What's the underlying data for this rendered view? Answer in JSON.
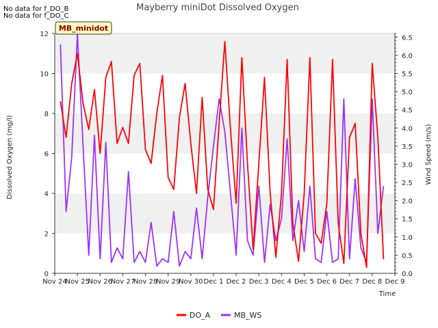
{
  "notes": [
    "No data for f_DO_B",
    "No data for f_DO_C"
  ],
  "chart_data": {
    "type": "line",
    "title": "Mayberry miniDot Dissolved Oxygen",
    "badge": "MB_minidot",
    "xlabel": "Time",
    "ylabel": "Dissolved Oxygen (mg/l)",
    "y2label": "Wind Speed (m/s)",
    "ylim": [
      0,
      12
    ],
    "y2lim": [
      0,
      6.6
    ],
    "xlim": [
      "2023-11-24",
      "2023-12-09"
    ],
    "x_ticks": [
      "Nov 24",
      "Nov 25",
      "Nov 26",
      "Nov 27",
      "Nov 28",
      "Nov 29",
      "Nov 30",
      "Dec 1",
      "Dec 2",
      "Dec 3",
      "Dec 4",
      "Dec 5",
      "Dec 6",
      "Dec 7",
      "Dec 8",
      "Dec 9"
    ],
    "y_ticks": [
      "0",
      "2",
      "4",
      "6",
      "8",
      "10",
      "12"
    ],
    "y2_ticks": [
      "0.0",
      "0.5",
      "1.0",
      "1.5",
      "2.0",
      "2.5",
      "3.0",
      "3.5",
      "4.0",
      "4.5",
      "5.0",
      "5.5",
      "6.0",
      "6.5"
    ],
    "grid": "horizontal bands",
    "legend_position": "bottom-center",
    "colors": {
      "DO_A": "#ff0000",
      "MB_WS": "#9b30ff",
      "band": "#f0f0f0"
    },
    "series": [
      {
        "name": "DO_A",
        "axis": "left",
        "x": [
          "2023-11-24 06:00",
          "2023-11-24 12:00",
          "2023-11-24 18:00",
          "2023-11-25 00:00",
          "2023-11-25 06:00",
          "2023-11-25 12:00",
          "2023-11-25 18:00",
          "2023-11-26 00:00",
          "2023-11-26 06:00",
          "2023-11-26 12:00",
          "2023-11-26 18:00",
          "2023-11-27 00:00",
          "2023-11-27 06:00",
          "2023-11-27 12:00",
          "2023-11-27 18:00",
          "2023-11-28 00:00",
          "2023-11-28 06:00",
          "2023-11-28 12:00",
          "2023-11-28 18:00",
          "2023-11-29 00:00",
          "2023-11-29 06:00",
          "2023-11-29 12:00",
          "2023-11-29 18:00",
          "2023-11-30 00:00",
          "2023-11-30 06:00",
          "2023-11-30 12:00",
          "2023-11-30 18:00",
          "2023-12-01 00:00",
          "2023-12-01 06:00",
          "2023-12-01 12:00",
          "2023-12-01 18:00",
          "2023-12-02 00:00",
          "2023-12-02 06:00",
          "2023-12-02 12:00",
          "2023-12-02 18:00",
          "2023-12-03 00:00",
          "2023-12-03 06:00",
          "2023-12-03 12:00",
          "2023-12-03 18:00",
          "2023-12-04 00:00",
          "2023-12-04 06:00",
          "2023-12-04 12:00",
          "2023-12-04 18:00",
          "2023-12-05 00:00",
          "2023-12-05 06:00",
          "2023-12-05 12:00",
          "2023-12-05 18:00",
          "2023-12-06 00:00",
          "2023-12-06 06:00",
          "2023-12-06 12:00",
          "2023-12-06 18:00",
          "2023-12-07 00:00",
          "2023-12-07 06:00",
          "2023-12-07 12:00",
          "2023-12-07 18:00",
          "2023-12-08 00:00",
          "2023-12-08 06:00",
          "2023-12-08 12:00"
        ],
        "values": [
          8.6,
          6.8,
          9.5,
          11.0,
          8.5,
          7.2,
          9.2,
          6.0,
          9.8,
          10.6,
          6.5,
          7.3,
          6.5,
          9.9,
          10.5,
          6.2,
          5.5,
          8.0,
          9.9,
          4.8,
          4.2,
          7.8,
          9.5,
          6.5,
          4.0,
          8.8,
          4.2,
          3.2,
          7.5,
          11.6,
          7.2,
          3.5,
          10.8,
          5.5,
          1.2,
          5.5,
          9.8,
          4.0,
          0.8,
          4.0,
          10.7,
          2.5,
          0.6,
          4.0,
          10.8,
          2.0,
          1.5,
          3.5,
          10.7,
          2.5,
          0.5,
          6.8,
          7.5,
          2.0,
          0.3,
          10.5,
          6.8,
          0.7
        ]
      },
      {
        "name": "MB_WS",
        "axis": "right",
        "x": [
          "2023-11-24 06:00",
          "2023-11-24 12:00",
          "2023-11-24 18:00",
          "2023-11-25 00:00",
          "2023-11-25 06:00",
          "2023-11-25 12:00",
          "2023-11-25 18:00",
          "2023-11-26 00:00",
          "2023-11-26 06:00",
          "2023-11-26 12:00",
          "2023-11-26 18:00",
          "2023-11-27 00:00",
          "2023-11-27 06:00",
          "2023-11-27 12:00",
          "2023-11-27 18:00",
          "2023-11-28 00:00",
          "2023-11-28 06:00",
          "2023-11-28 12:00",
          "2023-11-28 18:00",
          "2023-11-29 00:00",
          "2023-11-29 06:00",
          "2023-11-29 12:00",
          "2023-11-29 18:00",
          "2023-11-30 00:00",
          "2023-11-30 06:00",
          "2023-11-30 12:00",
          "2023-11-30 18:00",
          "2023-12-01 00:00",
          "2023-12-01 06:00",
          "2023-12-01 12:00",
          "2023-12-01 18:00",
          "2023-12-02 00:00",
          "2023-12-02 06:00",
          "2023-12-02 12:00",
          "2023-12-02 18:00",
          "2023-12-03 00:00",
          "2023-12-03 06:00",
          "2023-12-03 12:00",
          "2023-12-03 18:00",
          "2023-12-04 00:00",
          "2023-12-04 06:00",
          "2023-12-04 12:00",
          "2023-12-04 18:00",
          "2023-12-05 00:00",
          "2023-12-05 06:00",
          "2023-12-05 12:00",
          "2023-12-05 18:00",
          "2023-12-06 00:00",
          "2023-12-06 06:00",
          "2023-12-06 12:00",
          "2023-12-06 18:00",
          "2023-12-07 00:00",
          "2023-12-07 06:00",
          "2023-12-07 12:00",
          "2023-12-07 18:00",
          "2023-12-08 00:00",
          "2023-12-08 06:00",
          "2023-12-08 12:00"
        ],
        "values": [
          6.3,
          1.7,
          3.2,
          6.6,
          3.5,
          0.5,
          3.8,
          0.4,
          3.6,
          0.3,
          0.7,
          0.4,
          2.8,
          0.3,
          0.6,
          0.3,
          1.4,
          0.2,
          0.4,
          0.3,
          1.7,
          0.2,
          0.6,
          0.4,
          1.8,
          0.4,
          2.1,
          3.5,
          4.8,
          3.9,
          2.2,
          0.5,
          4.0,
          0.9,
          0.5,
          2.4,
          0.3,
          1.9,
          0.9,
          1.5,
          3.7,
          0.9,
          2.0,
          0.6,
          2.4,
          0.4,
          0.3,
          1.7,
          0.3,
          0.4,
          4.8,
          0.4,
          2.6,
          0.7,
          0.3,
          4.8,
          1.1,
          2.4
        ]
      }
    ]
  }
}
